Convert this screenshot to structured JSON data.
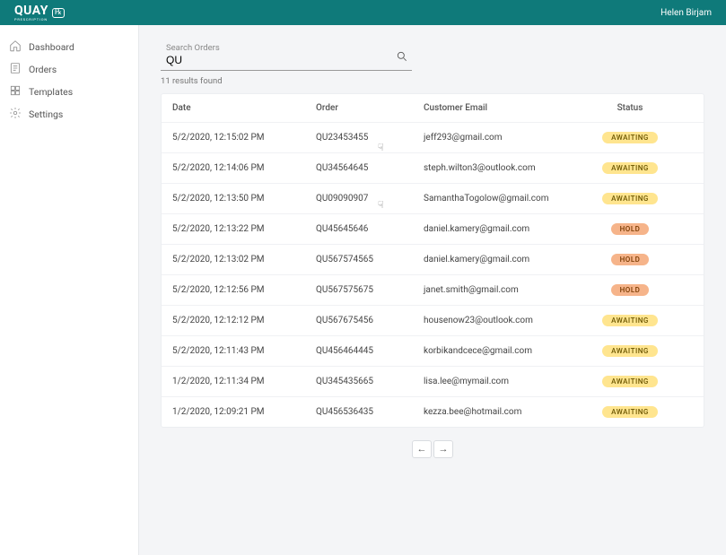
{
  "brand": {
    "name": "QUAY",
    "sub": "PRESCRIPTION",
    "rx": "℞"
  },
  "user": {
    "name": "Helen Birjam"
  },
  "sidebar": {
    "items": [
      {
        "label": "Dashboard",
        "icon": "home-icon"
      },
      {
        "label": "Orders",
        "icon": "orders-icon"
      },
      {
        "label": "Templates",
        "icon": "templates-icon"
      },
      {
        "label": "Settings",
        "icon": "settings-icon"
      }
    ]
  },
  "search": {
    "label": "Search Orders",
    "value": "QU"
  },
  "results": {
    "count_text": "11 results found"
  },
  "table": {
    "columns": [
      "Date",
      "Order",
      "Customer Email",
      "Status"
    ],
    "status_styles": {
      "AWAITING": {
        "bg": "#ffe58f",
        "fg": "#6b5600"
      },
      "HOLD": {
        "bg": "#f6b48a",
        "fg": "#7a3b00"
      }
    },
    "rows": [
      {
        "date": "5/2/2020, 12:15:02 PM",
        "order": "QU23453455",
        "email": "jeff293@gmail.com",
        "status": "AWAITING"
      },
      {
        "date": "5/2/2020, 12:14:06 PM",
        "order": "QU34564645",
        "email": "steph.wilton3@outlook.com",
        "status": "AWAITING"
      },
      {
        "date": "5/2/2020, 12:13:50 PM",
        "order": "QU09090907",
        "email": "SamanthaTogolow@gmail.com",
        "status": "AWAITING"
      },
      {
        "date": "5/2/2020, 12:13:22 PM",
        "order": "QU45645646",
        "email": "daniel.kamery@gmail.com",
        "status": "HOLD"
      },
      {
        "date": "5/2/2020, 12:13:02 PM",
        "order": "QU567574565",
        "email": "daniel.kamery@gmail.com",
        "status": "HOLD"
      },
      {
        "date": "5/2/2020, 12:12:56 PM",
        "order": "QU567575675",
        "email": "janet.smith@gmail.com",
        "status": "HOLD"
      },
      {
        "date": "5/2/2020, 12:12:12 PM",
        "order": "QU567675456",
        "email": "housenow23@outlook.com",
        "status": "AWAITING"
      },
      {
        "date": "5/2/2020, 12:11:43 PM",
        "order": "QU456464445",
        "email": "korbikandcece@gmail.com",
        "status": "AWAITING"
      },
      {
        "date": "1/2/2020, 12:11:34 PM",
        "order": "QU345435665",
        "email": "lisa.lee@mymail.com",
        "status": "AWAITING"
      },
      {
        "date": "1/2/2020, 12:09:21 PM",
        "order": "QU456536435",
        "email": "kezza.bee@hotmail.com",
        "status": "AWAITING"
      }
    ]
  },
  "pager": {
    "prev": "←",
    "next": "→"
  }
}
